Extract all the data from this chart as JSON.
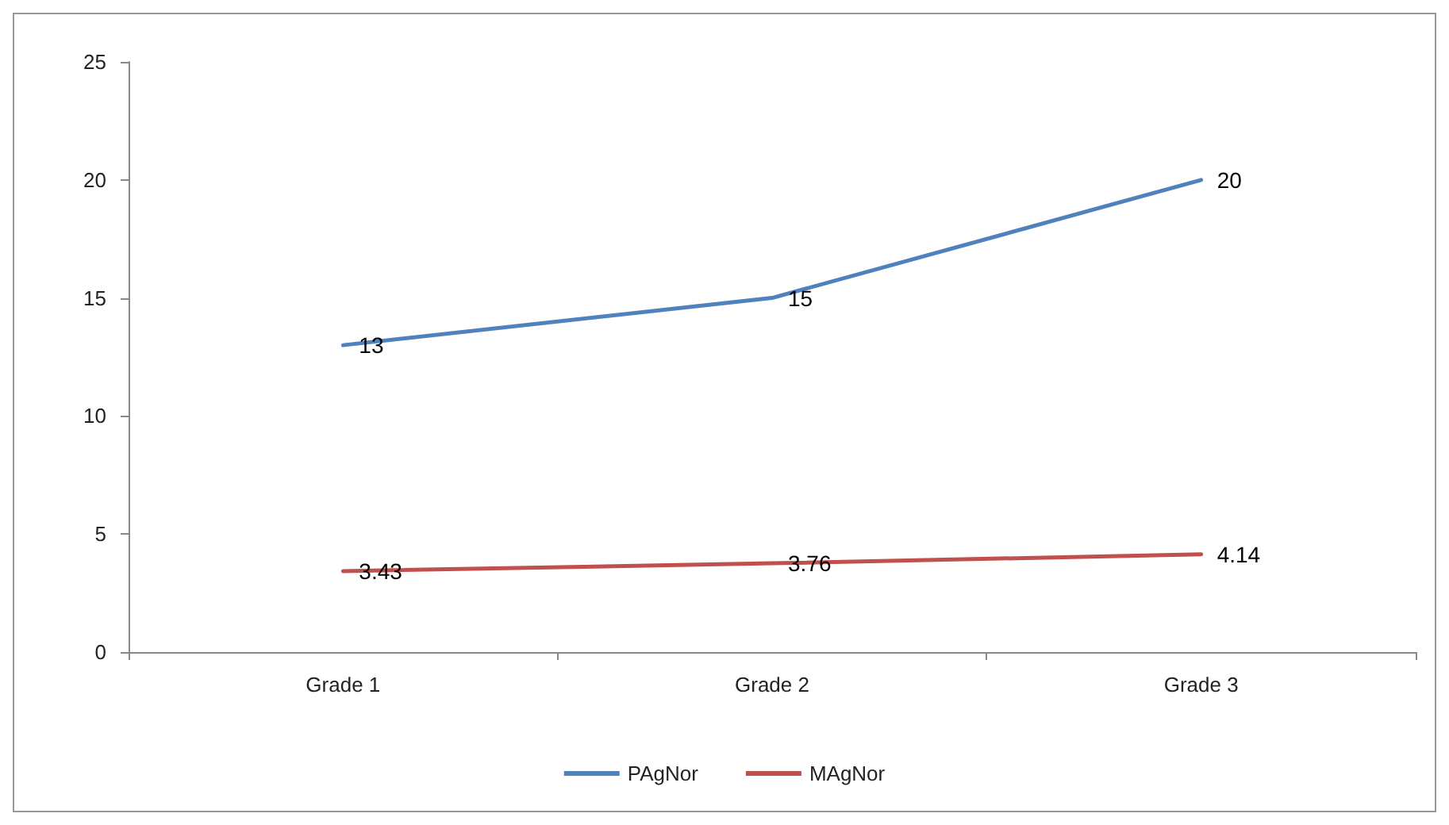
{
  "chart_data": {
    "type": "line",
    "categories": [
      "Grade 1",
      "Grade 2",
      "Grade 3"
    ],
    "series": [
      {
        "name": "PAgNor",
        "color": "#4f81bd",
        "values": [
          13,
          15,
          20
        ]
      },
      {
        "name": "MAgNor",
        "color": "#c0504d",
        "values": [
          3.43,
          3.76,
          4.14
        ]
      }
    ],
    "ylim": [
      0,
      25
    ],
    "yticks": [
      0,
      5,
      10,
      15,
      20,
      25
    ],
    "grid": false,
    "legend": "bottom",
    "data_labels": true,
    "marker": "none"
  }
}
